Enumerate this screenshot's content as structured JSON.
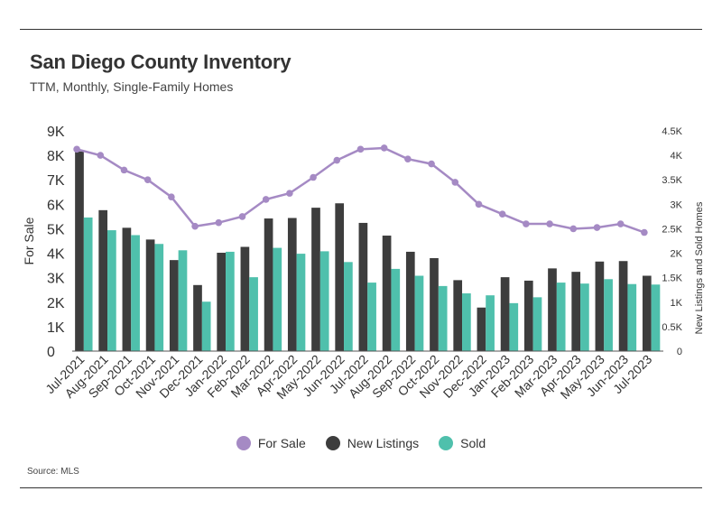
{
  "title": "San Diego County Inventory",
  "subtitle": "TTM, Monthly, Single-Family Homes",
  "source": "Source:  MLS",
  "colors": {
    "for_sale": "#a58ac4",
    "new_listings": "#3d3d3d",
    "sold": "#4fc0ac",
    "axis": "#555555"
  },
  "chart_data": {
    "type": "bar",
    "categories": [
      "Jul-2021",
      "Aug-2021",
      "Sep-2021",
      "Oct-2021",
      "Nov-2021",
      "Dec-2021",
      "Jan-2022",
      "Feb-2022",
      "Mar-2022",
      "Apr-2022",
      "May-2022",
      "Jun-2022",
      "Jul-2022",
      "Aug-2022",
      "Sep-2022",
      "Oct-2022",
      "Nov-2022",
      "Dec-2022",
      "Jan-2023",
      "Feb-2023",
      "Mar-2023",
      "Apr-2023",
      "May-2023",
      "Jun-2023",
      "Jul-2023"
    ],
    "ylabel": "For Sale",
    "y2label": "New Listings and Sold Homes",
    "ylim": [
      0,
      9000
    ],
    "y2lim": [
      0,
      4500
    ],
    "yticks": [
      "0",
      "1K",
      "2K",
      "3K",
      "4K",
      "5K",
      "6K",
      "7K",
      "8K",
      "9K"
    ],
    "y2ticks": [
      "0",
      "0.5K",
      "1K",
      "1.5K",
      "2K",
      "2.5K",
      "3K",
      "3.5K",
      "4K",
      "4.5K"
    ],
    "series": [
      {
        "name": "For Sale",
        "type": "line",
        "axis": "left",
        "values": [
          8250,
          8000,
          7400,
          7000,
          6300,
          5100,
          5250,
          5500,
          6200,
          6450,
          7100,
          7800,
          8250,
          8300,
          7850,
          7650,
          6900,
          6000,
          5600,
          5200,
          5200,
          5000,
          5050,
          5200,
          4850
        ]
      },
      {
        "name": "New Listings",
        "type": "bar",
        "axis": "right",
        "values": [
          4080,
          2880,
          2520,
          2280,
          1860,
          1350,
          2010,
          2130,
          2710,
          2720,
          2930,
          3020,
          2620,
          2360,
          2030,
          1900,
          1450,
          890,
          1510,
          1440,
          1690,
          1620,
          1830,
          1840,
          1540
        ]
      },
      {
        "name": "Sold",
        "type": "bar",
        "axis": "right",
        "values": [
          2730,
          2470,
          2370,
          2190,
          2060,
          1010,
          2030,
          1510,
          2110,
          1990,
          2040,
          1820,
          1400,
          1680,
          1540,
          1330,
          1180,
          1140,
          980,
          1100,
          1400,
          1380,
          1470,
          1370,
          1360
        ]
      }
    ],
    "legend": {
      "position": "bottom",
      "items": [
        "For Sale",
        "New Listings",
        "Sold"
      ]
    }
  }
}
